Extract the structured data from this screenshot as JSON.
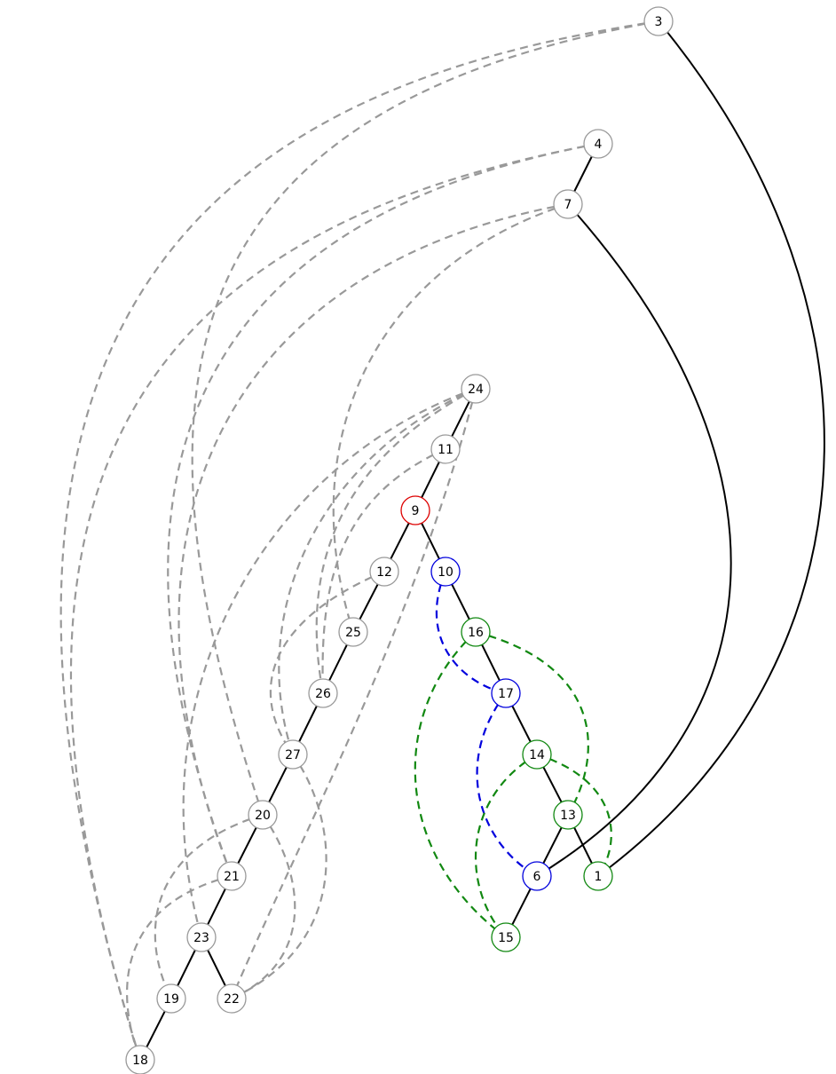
{
  "colors": {
    "default": "#999999",
    "solid": "#000000",
    "red": "#dd0000",
    "blue": "#0000dd",
    "green": "#118811",
    "fill": "#ffffff"
  },
  "nodes": [
    {
      "id": "1",
      "label": "1",
      "color": "green"
    },
    {
      "id": "3",
      "label": "3",
      "color": "default"
    },
    {
      "id": "4",
      "label": "4",
      "color": "default"
    },
    {
      "id": "6",
      "label": "6",
      "color": "blue"
    },
    {
      "id": "7",
      "label": "7",
      "color": "default"
    },
    {
      "id": "9",
      "label": "9",
      "color": "red"
    },
    {
      "id": "10",
      "label": "10",
      "color": "blue"
    },
    {
      "id": "11",
      "label": "11",
      "color": "default"
    },
    {
      "id": "12",
      "label": "12",
      "color": "default"
    },
    {
      "id": "13",
      "label": "13",
      "color": "green"
    },
    {
      "id": "14",
      "label": "14",
      "color": "green"
    },
    {
      "id": "15",
      "label": "15",
      "color": "green"
    },
    {
      "id": "16",
      "label": "16",
      "color": "green"
    },
    {
      "id": "17",
      "label": "17",
      "color": "blue"
    },
    {
      "id": "18",
      "label": "18",
      "color": "default"
    },
    {
      "id": "19",
      "label": "19",
      "color": "default"
    },
    {
      "id": "20",
      "label": "20",
      "color": "default"
    },
    {
      "id": "21",
      "label": "21",
      "color": "default"
    },
    {
      "id": "22",
      "label": "22",
      "color": "default"
    },
    {
      "id": "23",
      "label": "23",
      "color": "default"
    },
    {
      "id": "24",
      "label": "24",
      "color": "default"
    },
    {
      "id": "25",
      "label": "25",
      "color": "default"
    },
    {
      "id": "26",
      "label": "26",
      "color": "default"
    },
    {
      "id": "27",
      "label": "27",
      "color": "default"
    }
  ],
  "tree_edges": [
    {
      "from": "3",
      "to": "1"
    },
    {
      "from": "4",
      "to": "7"
    },
    {
      "from": "7",
      "to": "6"
    },
    {
      "from": "24",
      "to": "11"
    },
    {
      "from": "11",
      "to": "9"
    },
    {
      "from": "9",
      "to": "12"
    },
    {
      "from": "9",
      "to": "10"
    },
    {
      "from": "12",
      "to": "25"
    },
    {
      "from": "25",
      "to": "26"
    },
    {
      "from": "26",
      "to": "27"
    },
    {
      "from": "27",
      "to": "20"
    },
    {
      "from": "20",
      "to": "21"
    },
    {
      "from": "21",
      "to": "23"
    },
    {
      "from": "23",
      "to": "19"
    },
    {
      "from": "23",
      "to": "22"
    },
    {
      "from": "19",
      "to": "18"
    },
    {
      "from": "10",
      "to": "16"
    },
    {
      "from": "16",
      "to": "17"
    },
    {
      "from": "17",
      "to": "14"
    },
    {
      "from": "14",
      "to": "13"
    },
    {
      "from": "13",
      "to": "6"
    },
    {
      "from": "13",
      "to": "1"
    },
    {
      "from": "6",
      "to": "15"
    }
  ],
  "back_edges": [
    {
      "from": "3",
      "to": "18",
      "color": "default"
    },
    {
      "from": "3",
      "to": "20",
      "color": "default"
    },
    {
      "from": "4",
      "to": "18",
      "color": "default"
    },
    {
      "from": "4",
      "to": "21",
      "color": "default"
    },
    {
      "from": "7",
      "to": "21",
      "color": "default"
    },
    {
      "from": "7",
      "to": "25",
      "color": "default"
    },
    {
      "from": "24",
      "to": "26",
      "color": "default"
    },
    {
      "from": "24",
      "to": "27",
      "color": "default"
    },
    {
      "from": "24",
      "to": "23",
      "color": "default"
    },
    {
      "from": "24",
      "to": "22",
      "color": "default"
    },
    {
      "from": "11",
      "to": "26",
      "color": "default"
    },
    {
      "from": "12",
      "to": "27",
      "color": "default"
    },
    {
      "from": "27",
      "to": "22",
      "color": "default"
    },
    {
      "from": "20",
      "to": "19",
      "color": "default"
    },
    {
      "from": "20",
      "to": "22",
      "color": "default"
    },
    {
      "from": "21",
      "to": "18",
      "color": "default"
    },
    {
      "from": "10",
      "to": "17",
      "color": "blue"
    },
    {
      "from": "17",
      "to": "6",
      "color": "blue"
    },
    {
      "from": "16",
      "to": "13",
      "color": "green"
    },
    {
      "from": "16",
      "to": "15",
      "color": "green"
    },
    {
      "from": "14",
      "to": "1",
      "color": "green"
    },
    {
      "from": "14",
      "to": "15",
      "color": "green"
    }
  ]
}
